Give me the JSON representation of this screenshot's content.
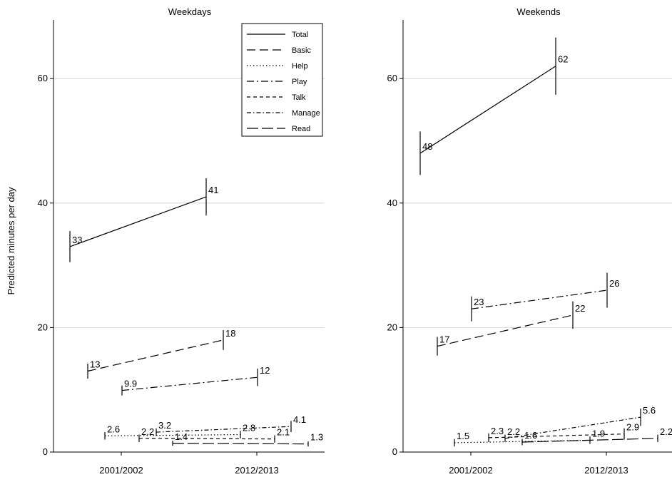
{
  "ylabel": "Predicted minutes per day",
  "chart_data": [
    {
      "type": "line",
      "title": "Weekdays",
      "ylabel": "Predicted minutes per day",
      "ylim": [
        0,
        70
      ],
      "yticks": [
        0,
        20,
        40,
        60
      ],
      "xticks": [
        "2001/2002",
        "2012/2013"
      ],
      "grid": true,
      "legend": "top-right",
      "series": [
        {
          "name": "Total",
          "dash": "",
          "start": 33,
          "end": 41,
          "start_label": "33",
          "end_label": "41",
          "ci_start": 2.5,
          "ci_end": 3.0
        },
        {
          "name": "Basic",
          "dash": "12,6",
          "start": 13,
          "end": 18,
          "start_label": "13",
          "end_label": "18",
          "ci_start": 1.2,
          "ci_end": 1.6
        },
        {
          "name": "Help",
          "dash": "1.5,3",
          "start": 2.6,
          "end": 2.8,
          "start_label": "2.6",
          "end_label": "2.8",
          "ci_start": 0.6,
          "ci_end": 0.6
        },
        {
          "name": "Play",
          "dash": "10,4,2,4",
          "start": 9.9,
          "end": 12,
          "start_label": "9.9",
          "end_label": "12",
          "ci_start": 0.8,
          "ci_end": 1.4
        },
        {
          "name": "Talk",
          "dash": "5,4",
          "start": 2.2,
          "end": 2.1,
          "start_label": "2.2",
          "end_label": "2.1",
          "ci_start": 0.6,
          "ci_end": 0.6
        },
        {
          "name": "Manage",
          "dash": "6,3,1.5,3",
          "start": 3.2,
          "end": 4.1,
          "start_label": "3.2",
          "end_label": "4.1",
          "ci_start": 0.6,
          "ci_end": 0.9
        },
        {
          "name": "Read",
          "dash": "16,5",
          "start": 1.4,
          "end": 1.3,
          "start_label": "1.4",
          "end_label": "1.3",
          "ci_start": 0.4,
          "ci_end": 0.4
        }
      ]
    },
    {
      "type": "line",
      "title": "Weekends",
      "ylim": [
        0,
        70
      ],
      "yticks": [
        0,
        20,
        40,
        60
      ],
      "xticks": [
        "2001/2002",
        "2012/2013"
      ],
      "grid": true,
      "series": [
        {
          "name": "Total",
          "start": 48,
          "end": 62,
          "start_label": "48",
          "end_label": "62",
          "ci_start": 3.5,
          "ci_end": 4.6
        },
        {
          "name": "Basic",
          "start": 17,
          "end": 22,
          "start_label": "17",
          "end_label": "22",
          "ci_start": 1.5,
          "ci_end": 2.2
        },
        {
          "name": "Help",
          "start": 1.5,
          "end": 1.9,
          "start_label": "1.5",
          "end_label": "1.9",
          "ci_start": 0.6,
          "ci_end": 0.6
        },
        {
          "name": "Play",
          "start": 23,
          "end": 26,
          "start_label": "23",
          "end_label": "26",
          "ci_start": 2.0,
          "ci_end": 2.8
        },
        {
          "name": "Talk",
          "start": 2.3,
          "end": 2.9,
          "start_label": "2.3",
          "end_label": "2.9",
          "ci_start": 0.7,
          "ci_end": 0.9
        },
        {
          "name": "Manage",
          "start": 2.2,
          "end": 5.6,
          "start_label": "2.2",
          "end_label": "5.6",
          "ci_start": 0.6,
          "ci_end": 1.4
        },
        {
          "name": "Read",
          "start": 1.6,
          "end": 2.2,
          "start_label": "1.6",
          "end_label": "2.2",
          "ci_start": 0.5,
          "ci_end": 0.6
        }
      ]
    }
  ]
}
